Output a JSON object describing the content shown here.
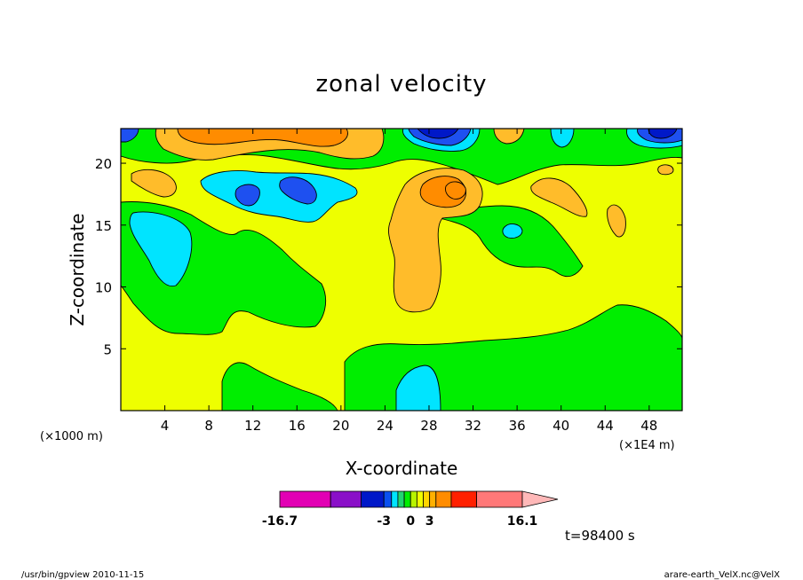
{
  "chart_data": {
    "type": "heatmap",
    "title": "zonal velocity",
    "xlabel": "X-coordinate",
    "ylabel": "Z-coordinate",
    "x_unit_left": "(×1000 m)",
    "x_unit_right": "(×1E4 m)",
    "x_ticks": [
      4,
      8,
      12,
      16,
      20,
      24,
      28,
      32,
      36,
      40,
      44,
      48
    ],
    "y_ticks": [
      5,
      10,
      15,
      20
    ],
    "xlim": [
      0,
      51
    ],
    "ylim": [
      0,
      22.8
    ],
    "colorbar": {
      "colors": [
        "#e200b4",
        "#8a10c8",
        "#0018c8",
        "#0a50f0",
        "#00e4ff",
        "#22d470",
        "#00ee00",
        "#b8f400",
        "#f0ff00",
        "#ffd600",
        "#ffb000",
        "#ff8c00",
        "#ff2000",
        "#ff7878",
        "#ffb8b8"
      ],
      "tick_labels": [
        "-16.7",
        "-3",
        "0",
        "3",
        "16.1"
      ],
      "tick_values": [
        -16.7,
        -3,
        0,
        3,
        16.1
      ]
    },
    "field_colors": {
      "magenta": "#e200b4",
      "purple": "#8a10c8",
      "dark_blue": "#0018c8",
      "blue": "#1e50f0",
      "cyan": "#00e4ff",
      "green": "#00ee00",
      "yellow": "#eeff00",
      "orange_light": "#ffbc2a",
      "orange": "#ff8c00"
    },
    "time_label": "t=98400 s"
  },
  "footer": {
    "left": "/usr/bin/gpview   2010-11-15",
    "right": "arare-earth_VelX.nc@VelX"
  }
}
